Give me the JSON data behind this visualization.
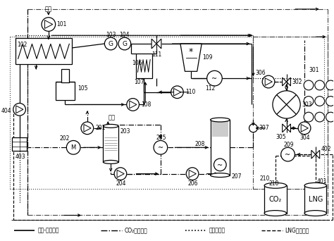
{
  "bg_color": "#ffffff",
  "legend_items": [
    {
      "label": "热水-蒸汽管线",
      "linestyle": "-",
      "color": "#000000",
      "lw": 1.2
    },
    {
      "label": "CO₂捕集管线",
      "linestyle": "-.",
      "color": "#000000",
      "lw": 1.0
    },
    {
      "label": "导热油管线",
      "linestyle": ":",
      "color": "#000000",
      "lw": 1.2
    },
    {
      "label": "LNG气化管线",
      "linestyle": "--",
      "color": "#000000",
      "lw": 1.0
    }
  ]
}
